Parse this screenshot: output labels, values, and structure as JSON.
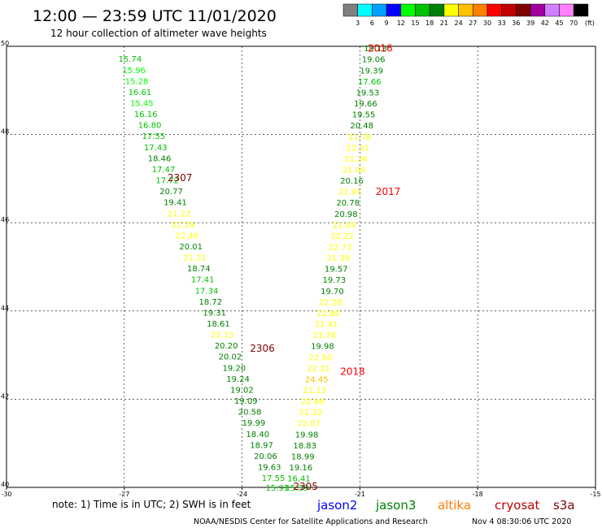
{
  "header": {
    "title": "12:00 — 23:59 UTC 11/01/2020",
    "subtitle": "12 hour collection of altimeter wave heights"
  },
  "colorbar": {
    "labels": [
      "3",
      "6",
      "9",
      "12",
      "15",
      "18",
      "21",
      "24",
      "27",
      "30",
      "33",
      "36",
      "39",
      "42",
      "45",
      "70"
    ],
    "unit": "(ft)",
    "colors": [
      "#808080",
      "#00ffff",
      "#00a0ff",
      "#0000ff",
      "#00ff00",
      "#00c000",
      "#008000",
      "#ffff00",
      "#ffc000",
      "#ff8000",
      "#ff0000",
      "#c00000",
      "#800000",
      "#a000a0",
      "#d080ff",
      "#ff80ff",
      "#000000"
    ]
  },
  "axes": {
    "lon_ticks": [
      "-30",
      "-27",
      "-24",
      "-21",
      "-18",
      "-15"
    ],
    "lat_ticks": [
      "40",
      "42",
      "44",
      "46",
      "48",
      "50"
    ],
    "lon_range": [
      -30,
      -15
    ],
    "lat_range": [
      40,
      50
    ]
  },
  "passes": [
    {
      "label": "2016",
      "lat": 49.95,
      "lon": -20.8,
      "color": "#ff0000"
    },
    {
      "label": "2307",
      "lat": 47.02,
      "lon": -25.9,
      "color": "#800000"
    },
    {
      "label": "2017",
      "lat": 46.7,
      "lon": -20.6,
      "color": "#ff0000"
    },
    {
      "label": "2306",
      "lat": 43.15,
      "lon": -23.8,
      "color": "#800000"
    },
    {
      "label": "2018",
      "lat": 42.62,
      "lon": -21.5,
      "color": "#ff0000"
    },
    {
      "label": "2305",
      "lat": 40.02,
      "lon": -22.7,
      "color": "#800000"
    }
  ],
  "tracks": [
    {
      "name": "track-2307",
      "points": [
        {
          "lon": -27.15,
          "lat": 49.72,
          "v": "15.74",
          "c": "#00c000"
        },
        {
          "lon": -27.05,
          "lat": 49.47,
          "v": "15.96",
          "c": "#00ff00"
        },
        {
          "lon": -26.98,
          "lat": 49.22,
          "v": "15.28",
          "c": "#00ff00"
        },
        {
          "lon": -26.9,
          "lat": 48.97,
          "v": "16.61",
          "c": "#00c000"
        },
        {
          "lon": -26.85,
          "lat": 48.72,
          "v": "15.45",
          "c": "#00ff00"
        },
        {
          "lon": -26.75,
          "lat": 48.47,
          "v": "16.16",
          "c": "#00c000"
        },
        {
          "lon": -26.65,
          "lat": 48.22,
          "v": "16.80",
          "c": "#00c000"
        },
        {
          "lon": -26.55,
          "lat": 47.97,
          "v": "17.55",
          "c": "#00c000"
        },
        {
          "lon": -26.5,
          "lat": 47.72,
          "v": "17.43",
          "c": "#00c000"
        },
        {
          "lon": -26.4,
          "lat": 47.47,
          "v": "18.46",
          "c": "#008000"
        },
        {
          "lon": -26.3,
          "lat": 47.22,
          "v": "17.47",
          "c": "#00c000"
        },
        {
          "lon": -26.2,
          "lat": 46.97,
          "v": "17.72",
          "c": "#00c000"
        },
        {
          "lon": -26.1,
          "lat": 46.72,
          "v": "20.77",
          "c": "#008000"
        },
        {
          "lon": -26.0,
          "lat": 46.47,
          "v": "19.41",
          "c": "#008000"
        },
        {
          "lon": -25.9,
          "lat": 46.22,
          "v": "21.22",
          "c": "#ffff00"
        },
        {
          "lon": -25.8,
          "lat": 45.97,
          "v": "22.29",
          "c": "#ffff00"
        },
        {
          "lon": -25.7,
          "lat": 45.72,
          "v": "22.40",
          "c": "#ffff00"
        },
        {
          "lon": -25.6,
          "lat": 45.47,
          "v": "20.01",
          "c": "#008000"
        },
        {
          "lon": -25.5,
          "lat": 45.22,
          "v": "21.21",
          "c": "#ffff00"
        },
        {
          "lon": -25.4,
          "lat": 44.97,
          "v": "18.74",
          "c": "#008000"
        },
        {
          "lon": -25.3,
          "lat": 44.72,
          "v": "17.41",
          "c": "#00c000"
        },
        {
          "lon": -25.2,
          "lat": 44.47,
          "v": "17.34",
          "c": "#00c000"
        },
        {
          "lon": -25.1,
          "lat": 44.22,
          "v": "18.72",
          "c": "#008000"
        },
        {
          "lon": -25.0,
          "lat": 43.97,
          "v": "19.31",
          "c": "#008000"
        },
        {
          "lon": -24.9,
          "lat": 43.72,
          "v": "18.61",
          "c": "#008000"
        },
        {
          "lon": -24.8,
          "lat": 43.47,
          "v": "22.13",
          "c": "#ffff00"
        },
        {
          "lon": -24.7,
          "lat": 43.22,
          "v": "20.20",
          "c": "#008000"
        },
        {
          "lon": -24.6,
          "lat": 42.97,
          "v": "20.02",
          "c": "#008000"
        },
        {
          "lon": -24.5,
          "lat": 42.72,
          "v": "19.20",
          "c": "#008000"
        },
        {
          "lon": -24.4,
          "lat": 42.47,
          "v": "19.24",
          "c": "#008000"
        },
        {
          "lon": -24.3,
          "lat": 42.22,
          "v": "19.02",
          "c": "#008000"
        },
        {
          "lon": -24.2,
          "lat": 41.97,
          "v": "19.09",
          "c": "#008000"
        },
        {
          "lon": -24.1,
          "lat": 41.72,
          "v": "20.58",
          "c": "#008000"
        },
        {
          "lon": -24.0,
          "lat": 41.47,
          "v": "19.99",
          "c": "#008000"
        },
        {
          "lon": -23.9,
          "lat": 41.22,
          "v": "18.40",
          "c": "#008000"
        },
        {
          "lon": -23.8,
          "lat": 40.97,
          "v": "18.97",
          "c": "#008000"
        },
        {
          "lon": -23.7,
          "lat": 40.72,
          "v": "20.06",
          "c": "#008000"
        },
        {
          "lon": -23.6,
          "lat": 40.47,
          "v": "19.63",
          "c": "#008000"
        },
        {
          "lon": -23.5,
          "lat": 40.22,
          "v": "17.55",
          "c": "#00c000"
        },
        {
          "lon": -23.4,
          "lat": 40.0,
          "v": "15.91",
          "c": "#00c000"
        }
      ]
    },
    {
      "name": "track-2306",
      "points": [
        {
          "lon": -20.9,
          "lat": 49.96,
          "v": "19.13",
          "c": "#008000"
        },
        {
          "lon": -20.95,
          "lat": 49.71,
          "v": "19.06",
          "c": "#008000"
        },
        {
          "lon": -21.0,
          "lat": 49.46,
          "v": "19.39",
          "c": "#008000"
        },
        {
          "lon": -21.05,
          "lat": 49.21,
          "v": "17.66",
          "c": "#00c000"
        },
        {
          "lon": -21.1,
          "lat": 48.96,
          "v": "19.53",
          "c": "#008000"
        },
        {
          "lon": -21.15,
          "lat": 48.71,
          "v": "19.66",
          "c": "#008000"
        },
        {
          "lon": -21.2,
          "lat": 48.46,
          "v": "19.55",
          "c": "#008000"
        },
        {
          "lon": -21.25,
          "lat": 48.21,
          "v": "20.48",
          "c": "#008000"
        },
        {
          "lon": -21.3,
          "lat": 47.96,
          "v": "21.78",
          "c": "#ffff00"
        },
        {
          "lon": -21.35,
          "lat": 47.71,
          "v": "22.31",
          "c": "#ffff00"
        },
        {
          "lon": -21.4,
          "lat": 47.46,
          "v": "21.24",
          "c": "#ffff00"
        },
        {
          "lon": -21.45,
          "lat": 47.21,
          "v": "21.04",
          "c": "#ffff00"
        },
        {
          "lon": -21.5,
          "lat": 46.96,
          "v": "20.16",
          "c": "#008000"
        },
        {
          "lon": -21.55,
          "lat": 46.71,
          "v": "21.91",
          "c": "#ffff00"
        },
        {
          "lon": -21.6,
          "lat": 46.46,
          "v": "20.78",
          "c": "#008000"
        },
        {
          "lon": -21.65,
          "lat": 46.21,
          "v": "20.98",
          "c": "#008000"
        },
        {
          "lon": -21.7,
          "lat": 45.96,
          "v": "21.09",
          "c": "#ffff00"
        },
        {
          "lon": -21.75,
          "lat": 45.71,
          "v": "22.22",
          "c": "#ffff00"
        },
        {
          "lon": -21.8,
          "lat": 45.46,
          "v": "22.73",
          "c": "#ffff00"
        },
        {
          "lon": -21.85,
          "lat": 45.21,
          "v": "21.39",
          "c": "#ffff00"
        },
        {
          "lon": -21.9,
          "lat": 44.96,
          "v": "19.57",
          "c": "#008000"
        },
        {
          "lon": -21.95,
          "lat": 44.71,
          "v": "19.73",
          "c": "#008000"
        },
        {
          "lon": -22.0,
          "lat": 44.46,
          "v": "19.70",
          "c": "#008000"
        },
        {
          "lon": -22.05,
          "lat": 44.21,
          "v": "22.28",
          "c": "#ffff00"
        },
        {
          "lon": -22.1,
          "lat": 43.96,
          "v": "22.80",
          "c": "#ffff00"
        },
        {
          "lon": -22.15,
          "lat": 43.71,
          "v": "21.41",
          "c": "#ffff00"
        },
        {
          "lon": -22.2,
          "lat": 43.46,
          "v": "23.78",
          "c": "#ffff00"
        },
        {
          "lon": -22.25,
          "lat": 43.21,
          "v": "19.98",
          "c": "#008000"
        },
        {
          "lon": -22.3,
          "lat": 42.96,
          "v": "22.50",
          "c": "#ffff00"
        },
        {
          "lon": -22.35,
          "lat": 42.71,
          "v": "22.21",
          "c": "#ffff00"
        },
        {
          "lon": -22.4,
          "lat": 42.46,
          "v": "24.45",
          "c": "#ffc000"
        },
        {
          "lon": -22.45,
          "lat": 42.21,
          "v": "21.13",
          "c": "#ffff00"
        },
        {
          "lon": -22.5,
          "lat": 41.96,
          "v": "22.66",
          "c": "#ffff00"
        },
        {
          "lon": -22.55,
          "lat": 41.71,
          "v": "21.32",
          "c": "#ffff00"
        },
        {
          "lon": -22.6,
          "lat": 41.46,
          "v": "22.07",
          "c": "#ffff00"
        },
        {
          "lon": -22.65,
          "lat": 41.21,
          "v": "19.98",
          "c": "#008000"
        },
        {
          "lon": -22.7,
          "lat": 40.96,
          "v": "18.83",
          "c": "#008000"
        },
        {
          "lon": -22.75,
          "lat": 40.71,
          "v": "18.99",
          "c": "#008000"
        },
        {
          "lon": -22.8,
          "lat": 40.46,
          "v": "19.16",
          "c": "#008000"
        },
        {
          "lon": -22.85,
          "lat": 40.21,
          "v": "16.41",
          "c": "#00c000"
        },
        {
          "lon": -22.9,
          "lat": 40.0,
          "v": "15.39",
          "c": "#00c000"
        }
      ]
    }
  ],
  "legend": {
    "note": "note: 1) Time is in UTC; 2) SWH is in feet",
    "satellites": [
      {
        "name": "jason2",
        "color": "#0000ff"
      },
      {
        "name": "jason3",
        "color": "#008000"
      },
      {
        "name": "altika",
        "color": "#ff8000"
      },
      {
        "name": "cryosat",
        "color": "#c00000"
      },
      {
        "name": "s3a",
        "color": "#800000"
      }
    ]
  },
  "footer": {
    "credit": "NOAA/NESDIS Center for Satellite Applications and Research",
    "timestamp": "Nov  4 08:30:06 UTC 2020"
  }
}
